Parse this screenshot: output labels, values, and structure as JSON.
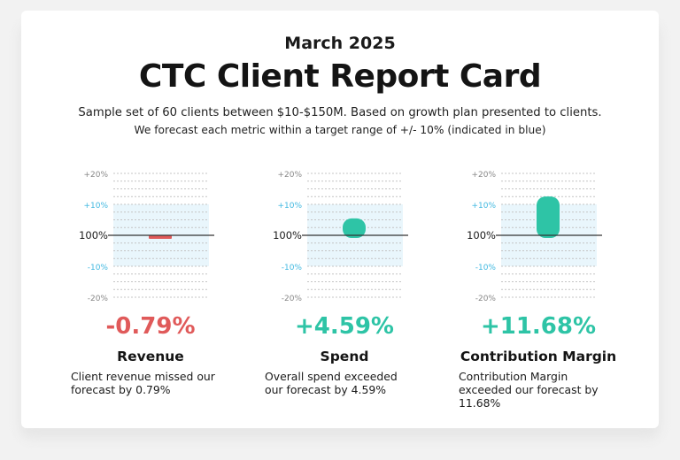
{
  "header": {
    "date": "March 2025",
    "title": "CTC Client Report Card",
    "subtitle": "Sample set of 60 clients between $10-$150M. Based on growth plan presented to clients.",
    "subtitle2": "We forecast each metric within a target range of +/- 10% (indicated in blue)"
  },
  "colors": {
    "negative": "#e05a5a",
    "positive": "#2ec4a6",
    "target_band": "#e9f6fc",
    "target_tick": "#40b8e0",
    "baseline": "#333333"
  },
  "axis": {
    "ticks": [
      {
        "label": "+20%",
        "value": 20
      },
      {
        "label": "+10%",
        "value": 10
      },
      {
        "label": "100%",
        "value": 0
      },
      {
        "label": "-10%",
        "value": -10
      },
      {
        "label": "-20%",
        "value": -20
      }
    ]
  },
  "chart_data": [
    {
      "type": "bar",
      "metric": "Revenue",
      "value": -0.79,
      "value_label": "-0.79%",
      "description": "Client revenue missed our forecast by 0.79%",
      "ylim": [
        -20,
        20
      ],
      "target_range": [
        -10,
        10
      ]
    },
    {
      "type": "bar",
      "metric": "Spend",
      "value": 4.59,
      "value_label": "+4.59%",
      "description": "Overall spend exceeded our forecast by 4.59%",
      "ylim": [
        -20,
        20
      ],
      "target_range": [
        -10,
        10
      ]
    },
    {
      "type": "bar",
      "metric": "Contribution Margin",
      "value": 11.68,
      "value_label": "+11.68%",
      "description": "Contribution Margin exceeded our forecast by 11.68%",
      "ylim": [
        -20,
        20
      ],
      "target_range": [
        -10,
        10
      ]
    }
  ]
}
